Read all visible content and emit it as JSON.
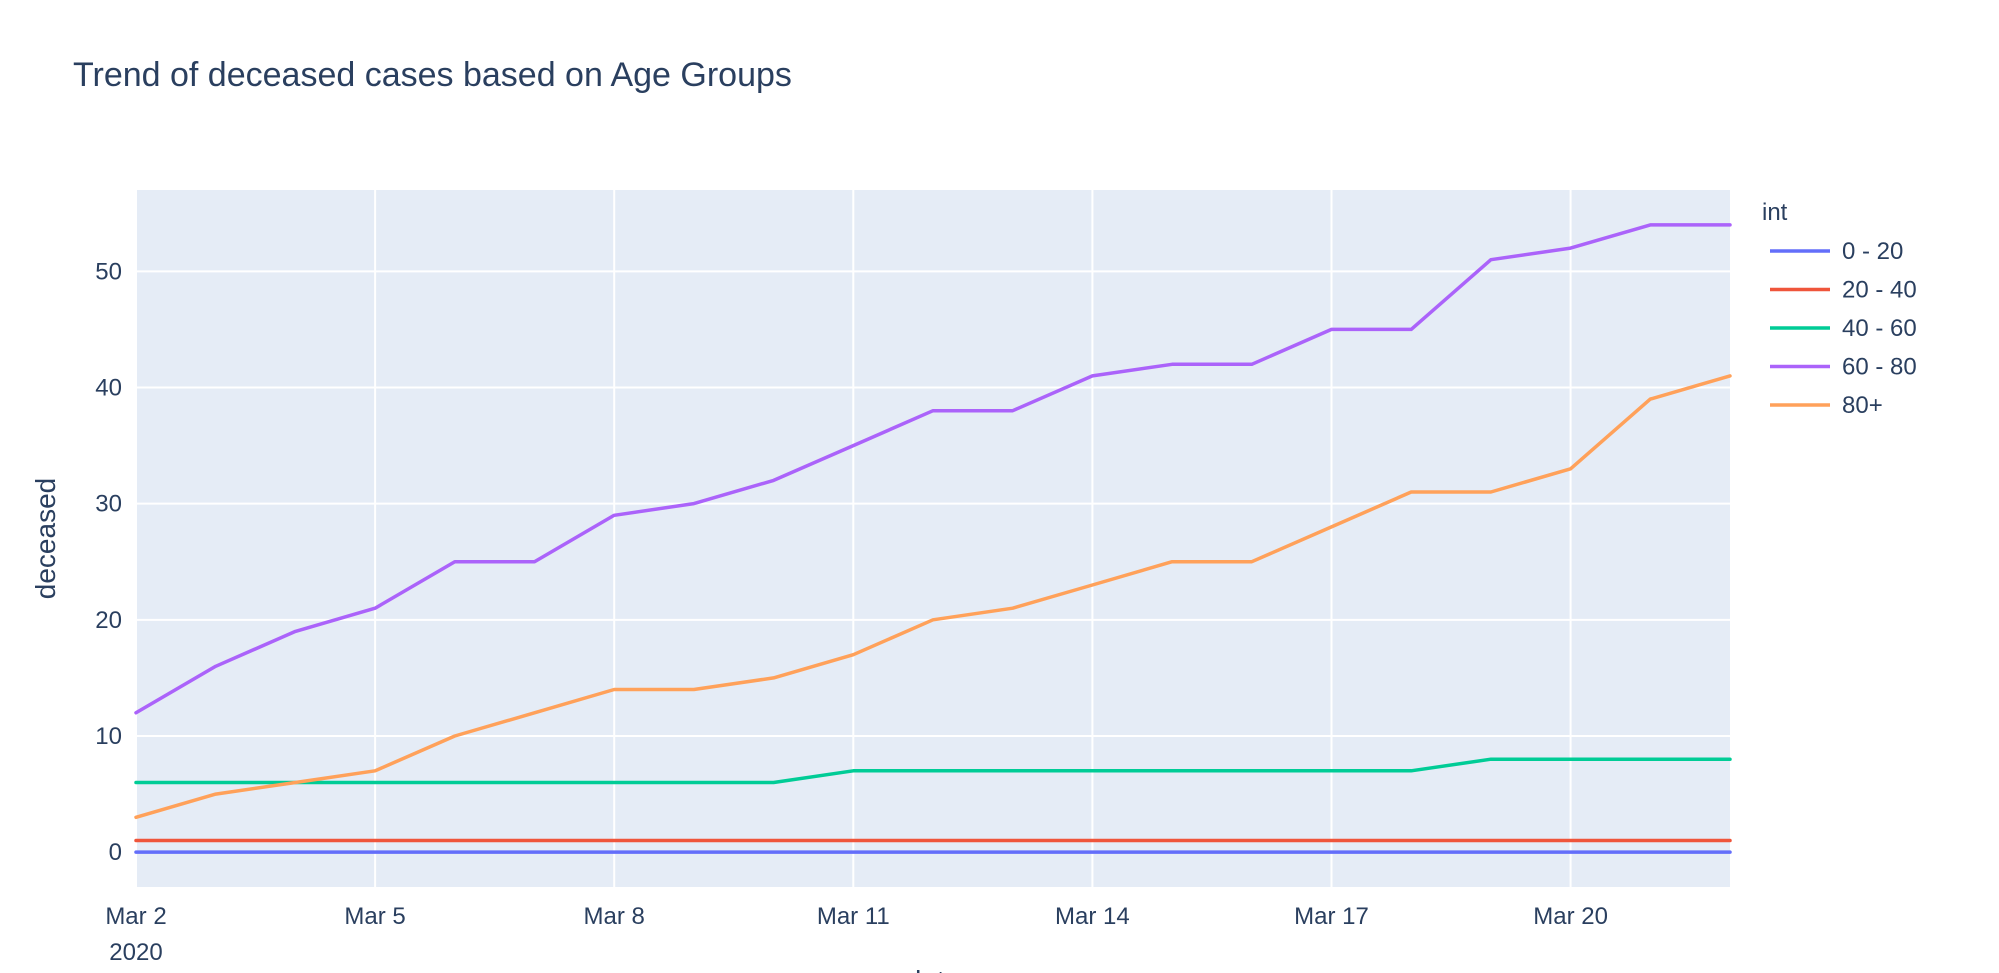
{
  "chart_data": {
    "type": "line",
    "title": "Trend of deceased cases based on Age Groups",
    "xlabel": "date",
    "ylabel": "deceased",
    "x": [
      "2020-03-02",
      "2020-03-03",
      "2020-03-04",
      "2020-03-05",
      "2020-03-06",
      "2020-03-07",
      "2020-03-08",
      "2020-03-09",
      "2020-03-10",
      "2020-03-11",
      "2020-03-12",
      "2020-03-13",
      "2020-03-14",
      "2020-03-15",
      "2020-03-16",
      "2020-03-17",
      "2020-03-18",
      "2020-03-19",
      "2020-03-20",
      "2020-03-21",
      "2020-03-22"
    ],
    "x_ticks": [
      {
        "date": "2020-03-02",
        "label": "Mar 2",
        "sublabel": "2020"
      },
      {
        "date": "2020-03-05",
        "label": "Mar 5"
      },
      {
        "date": "2020-03-08",
        "label": "Mar 8"
      },
      {
        "date": "2020-03-11",
        "label": "Mar 11"
      },
      {
        "date": "2020-03-14",
        "label": "Mar 14"
      },
      {
        "date": "2020-03-17",
        "label": "Mar 17"
      },
      {
        "date": "2020-03-20",
        "label": "Mar 20"
      }
    ],
    "y_ticks": [
      0,
      10,
      20,
      30,
      40,
      50
    ],
    "xlim": [
      "2020-03-02",
      "2020-03-22"
    ],
    "ylim": [
      -3,
      57
    ],
    "grid": true,
    "legend_title": "int",
    "legend_position": "right",
    "series": [
      {
        "name": "0 - 20",
        "color": "#636efa",
        "values": [
          0,
          0,
          0,
          0,
          0,
          0,
          0,
          0,
          0,
          0,
          0,
          0,
          0,
          0,
          0,
          0,
          0,
          0,
          0,
          0,
          0
        ]
      },
      {
        "name": "20 - 40",
        "color": "#EF553B",
        "values": [
          1,
          1,
          1,
          1,
          1,
          1,
          1,
          1,
          1,
          1,
          1,
          1,
          1,
          1,
          1,
          1,
          1,
          1,
          1,
          1,
          1
        ]
      },
      {
        "name": "40 - 60",
        "color": "#00cc96",
        "values": [
          6,
          6,
          6,
          6,
          6,
          6,
          6,
          6,
          6,
          7,
          7,
          7,
          7,
          7,
          7,
          7,
          7,
          8,
          8,
          8,
          8
        ]
      },
      {
        "name": "60 - 80",
        "color": "#ab63fa",
        "values": [
          12,
          16,
          19,
          21,
          25,
          25,
          29,
          30,
          32,
          35,
          38,
          38,
          41,
          42,
          42,
          45,
          45,
          51,
          52,
          54,
          54
        ]
      },
      {
        "name": "80+",
        "color": "#FFA15A",
        "values": [
          3,
          5,
          6,
          7,
          10,
          12,
          14,
          14,
          15,
          17,
          20,
          21,
          23,
          25,
          25,
          28,
          31,
          31,
          33,
          39,
          41
        ]
      }
    ]
  }
}
